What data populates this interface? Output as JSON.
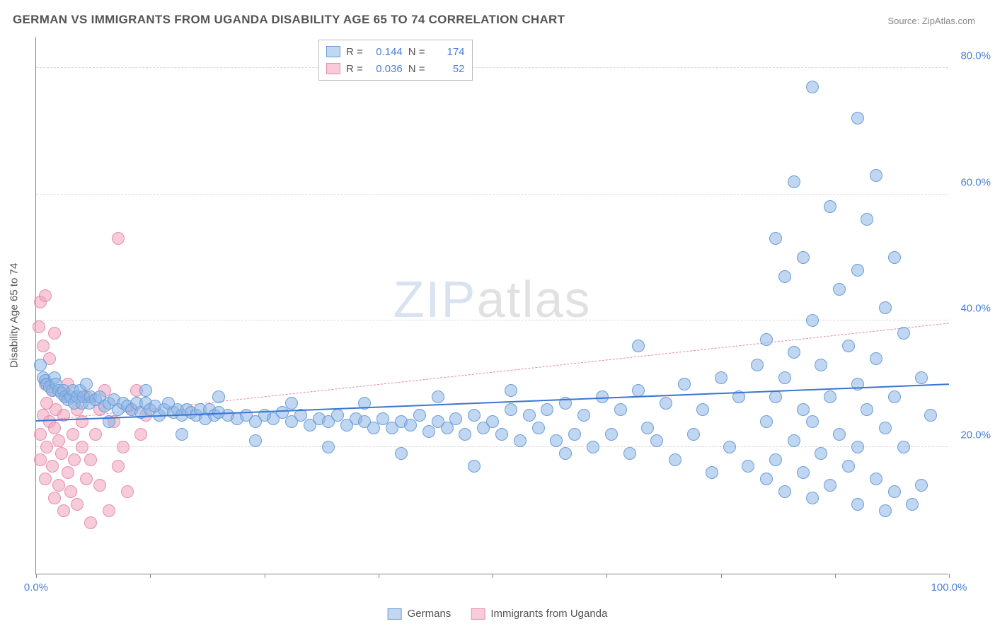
{
  "title": "GERMAN VS IMMIGRANTS FROM UGANDA DISABILITY AGE 65 TO 74 CORRELATION CHART",
  "source": "Source: ZipAtlas.com",
  "ylabel": "Disability Age 65 to 74",
  "watermark": {
    "part1": "ZIP",
    "part2": "atlas"
  },
  "chart": {
    "type": "scatter",
    "xlim": [
      0,
      100
    ],
    "ylim": [
      0,
      85
    ],
    "xtick_positions": [
      0,
      12.5,
      25,
      37.5,
      50,
      62.5,
      75,
      87.5,
      100
    ],
    "xtick_labels": {
      "0": "0.0%",
      "100": "100.0%"
    },
    "ytick_positions": [
      20,
      40,
      60,
      80
    ],
    "ytick_labels": [
      "20.0%",
      "40.0%",
      "60.0%",
      "80.0%"
    ],
    "background_color": "#ffffff",
    "grid_color": "#d8d8d8",
    "axis_color": "#888888",
    "tick_label_color": "#4a7fd6",
    "label_fontsize": 15,
    "title_fontsize": 17
  },
  "series": {
    "germans": {
      "label": "Germans",
      "R": "0.144",
      "N": "174",
      "marker_fill": "rgba(140,180,230,0.55)",
      "marker_stroke": "#6a9fd8",
      "marker_radius": 9,
      "trend_color": "#3a76d0",
      "trend_style": "solid",
      "trend": {
        "x1": 0,
        "y1": 24.0,
        "x2": 100,
        "y2": 29.8
      },
      "points": [
        [
          0.5,
          33
        ],
        [
          0.8,
          31
        ],
        [
          1.0,
          30.5
        ],
        [
          1.2,
          30
        ],
        [
          1.5,
          29.5
        ],
        [
          1.8,
          29
        ],
        [
          2.0,
          31
        ],
        [
          2.2,
          30
        ],
        [
          2.5,
          29
        ],
        [
          2.8,
          28.5
        ],
        [
          3.0,
          29
        ],
        [
          3.2,
          28
        ],
        [
          3.5,
          27.5
        ],
        [
          3.8,
          28
        ],
        [
          4.0,
          29
        ],
        [
          4.2,
          27
        ],
        [
          4.5,
          28
        ],
        [
          4.8,
          29
        ],
        [
          5.0,
          27
        ],
        [
          5.2,
          28
        ],
        [
          5.5,
          30
        ],
        [
          5.8,
          27
        ],
        [
          6.0,
          28
        ],
        [
          6.5,
          27.5
        ],
        [
          7.0,
          28
        ],
        [
          7.5,
          26.5
        ],
        [
          8.0,
          27
        ],
        [
          8.5,
          27.5
        ],
        [
          9.0,
          26
        ],
        [
          9.5,
          27
        ],
        [
          10,
          26.5
        ],
        [
          10.5,
          26
        ],
        [
          11,
          27
        ],
        [
          11.5,
          25.5
        ],
        [
          12,
          27
        ],
        [
          12.5,
          26
        ],
        [
          13,
          26.5
        ],
        [
          13.5,
          25
        ],
        [
          14,
          26
        ],
        [
          14.5,
          27
        ],
        [
          15,
          25.5
        ],
        [
          15.5,
          26
        ],
        [
          16,
          25
        ],
        [
          16.5,
          26
        ],
        [
          17,
          25.5
        ],
        [
          17.5,
          25
        ],
        [
          18,
          26
        ],
        [
          18.5,
          24.5
        ],
        [
          19,
          26
        ],
        [
          19.5,
          25
        ],
        [
          20,
          25.5
        ],
        [
          21,
          25
        ],
        [
          22,
          24.5
        ],
        [
          23,
          25
        ],
        [
          24,
          24
        ],
        [
          25,
          25
        ],
        [
          26,
          24.5
        ],
        [
          27,
          25.5
        ],
        [
          28,
          24
        ],
        [
          29,
          25
        ],
        [
          30,
          23.5
        ],
        [
          31,
          24.5
        ],
        [
          32,
          24
        ],
        [
          33,
          25
        ],
        [
          34,
          23.5
        ],
        [
          35,
          24.5
        ],
        [
          36,
          24
        ],
        [
          37,
          23
        ],
        [
          38,
          24.5
        ],
        [
          39,
          23
        ],
        [
          40,
          24
        ],
        [
          41,
          23.5
        ],
        [
          42,
          25
        ],
        [
          43,
          22.5
        ],
        [
          44,
          24
        ],
        [
          45,
          23
        ],
        [
          46,
          24.5
        ],
        [
          47,
          22
        ],
        [
          48,
          25
        ],
        [
          49,
          23
        ],
        [
          50,
          24
        ],
        [
          51,
          22
        ],
        [
          52,
          26
        ],
        [
          53,
          21
        ],
        [
          54,
          25
        ],
        [
          55,
          23
        ],
        [
          56,
          26
        ],
        [
          57,
          21
        ],
        [
          58,
          27
        ],
        [
          59,
          22
        ],
        [
          60,
          25
        ],
        [
          61,
          20
        ],
        [
          62,
          28
        ],
        [
          63,
          22
        ],
        [
          64,
          26
        ],
        [
          65,
          19
        ],
        [
          66,
          29
        ],
        [
          67,
          23
        ],
        [
          68,
          21
        ],
        [
          69,
          27
        ],
        [
          70,
          18
        ],
        [
          71,
          30
        ],
        [
          72,
          22
        ],
        [
          73,
          26
        ],
        [
          74,
          16
        ],
        [
          75,
          31
        ],
        [
          76,
          20
        ],
        [
          77,
          28
        ],
        [
          78,
          17
        ],
        [
          79,
          33
        ],
        [
          80,
          37
        ],
        [
          80,
          24
        ],
        [
          80,
          15
        ],
        [
          81,
          53
        ],
        [
          81,
          28
        ],
        [
          81,
          18
        ],
        [
          82,
          47
        ],
        [
          82,
          31
        ],
        [
          82,
          13
        ],
        [
          83,
          62
        ],
        [
          83,
          35
        ],
        [
          83,
          21
        ],
        [
          84,
          50
        ],
        [
          84,
          26
        ],
        [
          84,
          16
        ],
        [
          85,
          77
        ],
        [
          85,
          40
        ],
        [
          85,
          24
        ],
        [
          85,
          12
        ],
        [
          86,
          33
        ],
        [
          86,
          19
        ],
        [
          87,
          58
        ],
        [
          87,
          28
        ],
        [
          87,
          14
        ],
        [
          88,
          45
        ],
        [
          88,
          22
        ],
        [
          89,
          36
        ],
        [
          89,
          17
        ],
        [
          90,
          72
        ],
        [
          90,
          48
        ],
        [
          90,
          30
        ],
        [
          90,
          20
        ],
        [
          90,
          11
        ],
        [
          91,
          56
        ],
        [
          91,
          26
        ],
        [
          92,
          63
        ],
        [
          92,
          34
        ],
        [
          92,
          15
        ],
        [
          93,
          42
        ],
        [
          93,
          23
        ],
        [
          93,
          10
        ],
        [
          94,
          50
        ],
        [
          94,
          28
        ],
        [
          94,
          13
        ],
        [
          95,
          38
        ],
        [
          95,
          20
        ],
        [
          96,
          11
        ],
        [
          97,
          31
        ],
        [
          97,
          14
        ],
        [
          98,
          25
        ],
        [
          66,
          36
        ],
        [
          58,
          19
        ],
        [
          52,
          29
        ],
        [
          48,
          17
        ],
        [
          44,
          28
        ],
        [
          40,
          19
        ],
        [
          36,
          27
        ],
        [
          32,
          20
        ],
        [
          28,
          27
        ],
        [
          24,
          21
        ],
        [
          20,
          28
        ],
        [
          16,
          22
        ],
        [
          12,
          29
        ],
        [
          8,
          24
        ]
      ]
    },
    "uganda": {
      "label": "Immigrants from Uganda",
      "R": "0.036",
      "N": "52",
      "marker_fill": "rgba(240,160,185,0.55)",
      "marker_stroke": "#e58fb0",
      "marker_radius": 9,
      "trend_color": "#e08aa5",
      "trend_style": "dashed",
      "trend": {
        "x1": 0,
        "y1": 24.0,
        "x2": 100,
        "y2": 39.5
      },
      "points": [
        [
          0.3,
          39
        ],
        [
          0.5,
          22
        ],
        [
          0.5,
          43
        ],
        [
          0.5,
          18
        ],
        [
          0.8,
          25
        ],
        [
          0.8,
          36
        ],
        [
          1.0,
          15
        ],
        [
          1.0,
          30
        ],
        [
          1.0,
          44
        ],
        [
          1.2,
          20
        ],
        [
          1.2,
          27
        ],
        [
          1.5,
          24
        ],
        [
          1.5,
          34
        ],
        [
          1.8,
          17
        ],
        [
          1.8,
          29
        ],
        [
          2.0,
          12
        ],
        [
          2.0,
          23
        ],
        [
          2.0,
          38
        ],
        [
          2.2,
          26
        ],
        [
          2.5,
          14
        ],
        [
          2.5,
          21
        ],
        [
          2.8,
          19
        ],
        [
          3.0,
          10
        ],
        [
          3.0,
          25
        ],
        [
          3.2,
          28
        ],
        [
          3.5,
          16
        ],
        [
          3.5,
          30
        ],
        [
          3.8,
          13
        ],
        [
          4.0,
          22
        ],
        [
          4.2,
          18
        ],
        [
          4.5,
          26
        ],
        [
          4.5,
          11
        ],
        [
          5.0,
          20
        ],
        [
          5.0,
          24
        ],
        [
          5.5,
          15
        ],
        [
          5.5,
          28
        ],
        [
          6.0,
          18
        ],
        [
          6.0,
          8
        ],
        [
          6.5,
          22
        ],
        [
          7.0,
          14
        ],
        [
          7.0,
          26
        ],
        [
          7.5,
          29
        ],
        [
          8.0,
          10
        ],
        [
          8.5,
          24
        ],
        [
          9.0,
          17
        ],
        [
          9.0,
          53
        ],
        [
          9.5,
          20
        ],
        [
          10,
          13
        ],
        [
          10.5,
          26
        ],
        [
          11,
          29
        ],
        [
          11.5,
          22
        ],
        [
          12,
          25
        ]
      ]
    }
  },
  "legend_stats_labels": {
    "R": "R  =",
    "N": "N  ="
  }
}
